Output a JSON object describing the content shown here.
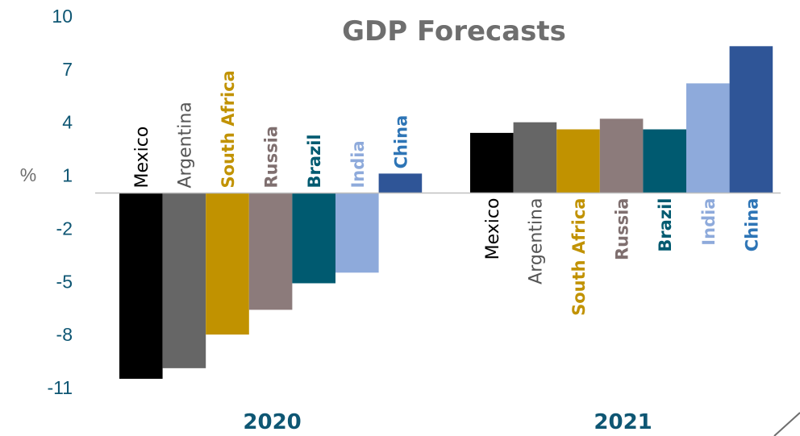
{
  "chart_data": {
    "type": "bar",
    "title": "GDP Forecasts",
    "ylabel": "%",
    "ylim": [
      -11,
      10
    ],
    "yticks": [
      10,
      7,
      4,
      1,
      -2,
      -5,
      -8,
      -11
    ],
    "groups": [
      "2020",
      "2021"
    ],
    "series": [
      {
        "name": "Mexico",
        "color": "#000000",
        "label_color": "#000000",
        "label_bold": false,
        "values": [
          -10.5,
          3.4
        ]
      },
      {
        "name": "Argentina",
        "color": "#666666",
        "label_color": "#555555",
        "label_bold": false,
        "values": [
          -9.9,
          4.0
        ]
      },
      {
        "name": "South Africa",
        "color": "#c19200",
        "label_color": "#c19200",
        "label_bold": true,
        "values": [
          -8.0,
          3.6
        ]
      },
      {
        "name": "Russia",
        "color": "#8c7b7b",
        "label_color": "#7f6f6f",
        "label_bold": true,
        "values": [
          -6.6,
          4.2
        ]
      },
      {
        "name": "Brazil",
        "color": "#005a70",
        "label_color": "#005a70",
        "label_bold": true,
        "values": [
          -5.1,
          3.6
        ]
      },
      {
        "name": "India",
        "color": "#8eaadb",
        "label_color": "#8eaadb",
        "label_bold": true,
        "values": [
          -4.5,
          6.2
        ]
      },
      {
        "name": "China",
        "color": "#2f5597",
        "label_color": "#2e75b6",
        "label_bold": true,
        "values": [
          1.1,
          8.3
        ]
      }
    ]
  }
}
